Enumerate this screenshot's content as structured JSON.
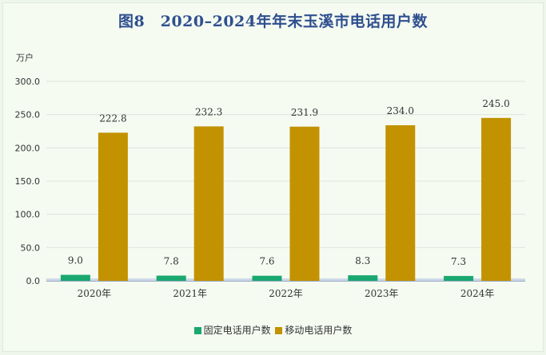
{
  "chart_data": {
    "type": "bar",
    "title": "图8　2020–2024年年末玉溪市电话用户数",
    "ylabel": "万户",
    "xlabel": "",
    "categories": [
      "2020年",
      "2021年",
      "2022年",
      "2023年",
      "2024年"
    ],
    "ylim": [
      0,
      300
    ],
    "yticks": [
      "0.0",
      "50.0",
      "100.0",
      "150.0",
      "200.0",
      "250.0",
      "300.0"
    ],
    "series": [
      {
        "name": "固定电话用户数",
        "values": [
          9.0,
          7.8,
          7.6,
          8.3,
          7.3
        ],
        "labels": [
          "9.0",
          "7.8",
          "7.6",
          "8.3",
          "7.3"
        ],
        "color": "#1aa870"
      },
      {
        "name": "移动电话用户数",
        "values": [
          222.8,
          232.3,
          231.9,
          234.0,
          245.0
        ],
        "labels": [
          "222.8",
          "232.3",
          "231.9",
          "234.0",
          "245.0"
        ],
        "color": "#c29200"
      }
    ],
    "grid": true,
    "legend": "bottom"
  }
}
